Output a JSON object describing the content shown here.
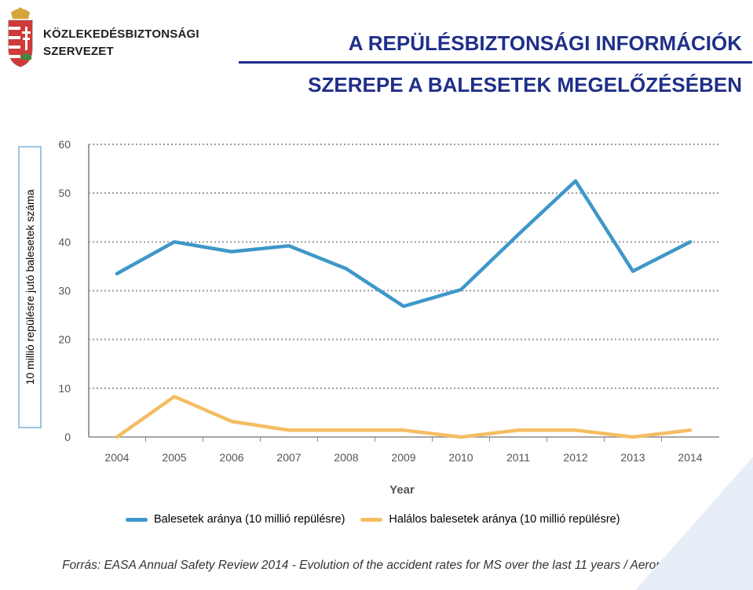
{
  "header": {
    "org_line1": "KÖZLEKEDÉSBIZTONSÁGI",
    "org_line2": "SZERVEZET",
    "title_line1": "A REPÜLÉSBIZTONSÁGI INFORMÁCIÓK",
    "title_line2": "SZEREPE A BALESETEK MEGELŐZÉSÉBEN"
  },
  "colors": {
    "title": "#1f2f88",
    "series1": "#3f97c9",
    "series2": "#f5bd63"
  },
  "chart_data": {
    "type": "line",
    "x": [
      "2004",
      "2005",
      "2006",
      "2007",
      "2008",
      "2009",
      "2010",
      "2011",
      "2012",
      "2013",
      "2014"
    ],
    "ylabel": "10 millió repülésre jutó balesetek száma",
    "xlabel": "Year",
    "ylim": [
      0,
      60
    ],
    "yticks": [
      "0",
      "10",
      "20",
      "30",
      "40",
      "50",
      "60"
    ],
    "grid": true,
    "legend": "bottom",
    "series": [
      {
        "name": "Balesetek aránya (10 millió repülésre)",
        "values": [
          33.5,
          40,
          38,
          39.2,
          34.5,
          26.8,
          30.2,
          41.5,
          52.5,
          34,
          40
        ]
      },
      {
        "name": "Halálos balesetek aránya (10 millió repülésre)",
        "values": [
          0,
          8.3,
          3.2,
          1.4,
          1.4,
          1.4,
          0,
          1.4,
          1.4,
          0,
          1.4
        ]
      }
    ]
  },
  "source": "Forrás: EASA Annual Safety Review 2014 - Evolution of the accident rates for MS over the last 11 years / Aeroplanes"
}
